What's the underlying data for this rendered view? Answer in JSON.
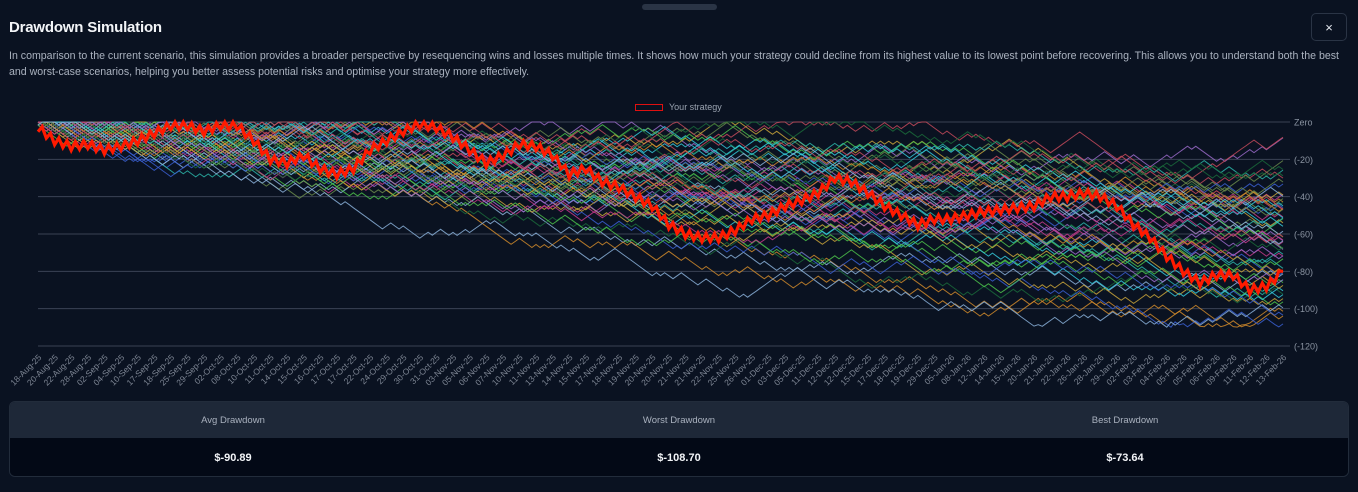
{
  "modal": {
    "title": "Drawdown Simulation",
    "close_label": "×",
    "description": "In comparison to the current scenario, this simulation provides a broader perspective by resequencing wins and losses multiple times. It shows how much your strategy could decline from its highest value to its lowest point before recovering. This allows you to understand both the best and worst-case scenarios, helping you better assess potential risks and optimise your strategy more effectively."
  },
  "legend": {
    "label": "Your strategy",
    "color": "#e01010"
  },
  "stats": {
    "headers": [
      "Avg Drawdown",
      "Worst Drawdown",
      "Best Drawdown"
    ],
    "values": [
      "$-90.89",
      "$-108.70",
      "$-73.64"
    ]
  },
  "colors": {
    "background": "#0a1221",
    "grid": "#3a4354",
    "strategy": "#ff1a00",
    "simulation_palette": [
      "#3a5fd0",
      "#2bb5a8",
      "#c9a53a",
      "#4cc24a",
      "#c43a8a",
      "#d08a2a",
      "#6a8a4a",
      "#34c8d8",
      "#9a6ac8",
      "#1a6a3a",
      "#c44a5a",
      "#8ab0d8"
    ]
  },
  "chart_data": {
    "type": "line",
    "title": "Drawdown Simulation",
    "xlabel": "",
    "ylabel": "",
    "ylim": [
      -120,
      0
    ],
    "yticks": [
      0,
      -20,
      -40,
      -60,
      -80,
      -100,
      -120
    ],
    "ytick_labels": [
      "Zero",
      "(-20)",
      "(-40)",
      "(-60)",
      "(-80)",
      "(-100)",
      "(-120)"
    ],
    "y_axis_position": "right",
    "grid": true,
    "legend_position": "top-center",
    "x": [
      "18-Aug-25",
      "20-Aug-25",
      "22-Aug-25",
      "28-Aug-25",
      "02-Sep-25",
      "04-Sep-25",
      "10-Sep-25",
      "17-Sep-25",
      "18-Sep-25",
      "25-Sep-25",
      "29-Sep-25",
      "02-Oct-25",
      "08-Oct-25",
      "10-Oct-25",
      "11-Oct-25",
      "14-Oct-25",
      "15-Oct-25",
      "16-Oct-25",
      "17-Oct-25",
      "17-Oct-25",
      "22-Oct-25",
      "24-Oct-25",
      "29-Oct-25",
      "30-Oct-25",
      "31-Oct-25",
      "03-Nov-25",
      "05-Nov-25",
      "06-Nov-25",
      "07-Nov-25",
      "10-Nov-25",
      "11-Nov-25",
      "13-Nov-25",
      "14-Nov-25",
      "15-Nov-25",
      "17-Nov-25",
      "18-Nov-25",
      "19-Nov-25",
      "20-Nov-25",
      "20-Nov-25",
      "21-Nov-25",
      "21-Nov-25",
      "22-Nov-25",
      "25-Nov-25",
      "26-Nov-25",
      "01-Dec-25",
      "03-Dec-25",
      "05-Dec-25",
      "11-Dec-25",
      "12-Dec-25",
      "12-Dec-25",
      "15-Dec-25",
      "17-Dec-25",
      "18-Dec-25",
      "19-Dec-25",
      "29-Dec-25",
      "05-Jan-26",
      "08-Jan-26",
      "12-Jan-26",
      "14-Jan-26",
      "15-Jan-26",
      "20-Jan-26",
      "21-Jan-26",
      "22-Jan-26",
      "26-Jan-26",
      "28-Jan-26",
      "29-Jan-26",
      "02-Feb-26",
      "03-Feb-26",
      "04-Feb-26",
      "05-Feb-26",
      "05-Feb-26",
      "06-Feb-26",
      "09-Feb-26",
      "11-Feb-26",
      "12-Feb-26",
      "13-Feb-26"
    ],
    "series": [
      {
        "name": "Your strategy",
        "color": "#ff1a00",
        "note": "approximate values read from the line",
        "values": [
          -3,
          -10,
          -13,
          -12,
          -15,
          -13,
          -10,
          -6,
          -2,
          -2,
          -5,
          -2,
          -2,
          -10,
          -20,
          -22,
          -18,
          -25,
          -28,
          -25,
          -15,
          -10,
          -5,
          -1,
          -3,
          -8,
          -15,
          -22,
          -18,
          -12,
          -13,
          -18,
          -28,
          -25,
          -32,
          -35,
          -40,
          -45,
          -55,
          -60,
          -62,
          -62,
          -58,
          -52,
          -50,
          -45,
          -42,
          -38,
          -30,
          -32,
          -38,
          -45,
          -50,
          -55,
          -52,
          -52,
          -50,
          -48,
          -47,
          -46,
          -45,
          -40,
          -40,
          -38,
          -40,
          -45,
          -55,
          -62,
          -72,
          -80,
          -86,
          -82,
          -82,
          -90,
          -88,
          -80
        ]
      }
    ],
    "simulation_paths_count": "many (random-walk resequences, multicolored)"
  }
}
